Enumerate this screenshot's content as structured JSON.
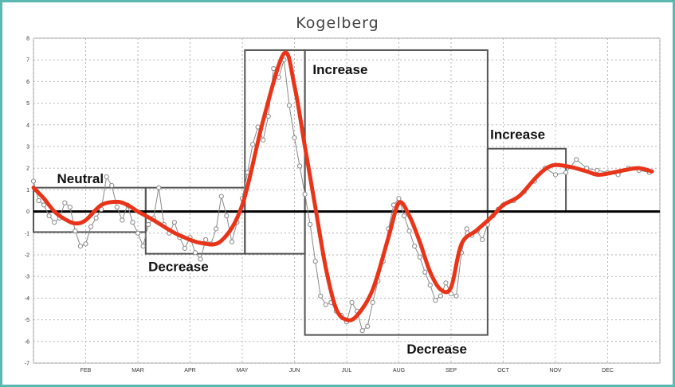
{
  "chart_data": {
    "type": "line",
    "title": "Kogelberg",
    "xlabel": "",
    "ylabel": "",
    "ylim": [
      -7,
      8
    ],
    "yticks": [
      8,
      7,
      6,
      5,
      4,
      3,
      2,
      1,
      0,
      -1,
      -2,
      -3,
      -4,
      -5,
      -6,
      -7
    ],
    "grid": true,
    "months": [
      "FEB",
      "MAR",
      "APR",
      "MAY",
      "JUN",
      "JUL",
      "AUG",
      "SEP",
      "OCT",
      "NOV",
      "DEC"
    ],
    "series": [
      {
        "kind": "smoothed",
        "color": "#e8351a",
        "x": [
          0,
          0.2,
          0.4,
          0.6,
          0.8,
          1.0,
          1.3,
          1.6,
          1.8,
          2.0,
          2.3,
          2.6,
          2.8,
          3.2,
          3.6,
          4.0,
          4.4,
          4.8,
          5.0,
          5.2,
          5.4,
          5.6,
          5.8,
          6.0,
          6.2,
          6.5,
          6.8,
          7.0,
          7.2,
          7.4,
          7.6,
          7.8,
          8.0,
          8.2,
          8.5,
          8.8,
          9.0,
          9.3,
          9.6,
          9.8,
          10.0,
          10.3,
          10.6,
          10.8,
          11.0,
          11.3,
          11.6,
          11.85
        ],
        "y": [
          1.1,
          0.6,
          0.0,
          -0.35,
          -0.55,
          -0.4,
          0.3,
          0.45,
          0.3,
          0.0,
          -0.4,
          -0.85,
          -1.1,
          -1.45,
          -1.35,
          0.3,
          4.2,
          7.3,
          5.8,
          3.0,
          0.2,
          -2.6,
          -4.5,
          -5.0,
          -4.8,
          -3.6,
          -1.2,
          0.4,
          -0.2,
          -1.4,
          -2.8,
          -3.6,
          -3.5,
          -1.5,
          -0.85,
          -0.2,
          0.3,
          0.7,
          1.5,
          1.95,
          2.15,
          2.05,
          1.85,
          1.7,
          1.75,
          1.9,
          2.0,
          1.85
        ]
      },
      {
        "kind": "observed",
        "color": "#888888",
        "x": [
          0,
          0.1,
          0.2,
          0.3,
          0.4,
          0.5,
          0.6,
          0.7,
          0.8,
          0.9,
          1.0,
          1.1,
          1.2,
          1.3,
          1.4,
          1.5,
          1.6,
          1.7,
          1.8,
          1.9,
          2.0,
          2.1,
          2.2,
          2.3,
          2.4,
          2.5,
          2.6,
          2.7,
          2.8,
          2.9,
          3.0,
          3.1,
          3.2,
          3.3,
          3.4,
          3.5,
          3.6,
          3.7,
          3.8,
          3.9,
          4.0,
          4.1,
          4.2,
          4.3,
          4.4,
          4.5,
          4.6,
          4.7,
          4.8,
          4.9,
          5.0,
          5.1,
          5.2,
          5.3,
          5.4,
          5.5,
          5.6,
          5.7,
          5.8,
          5.9,
          6.0,
          6.1,
          6.2,
          6.3,
          6.4,
          6.5,
          6.6,
          6.7,
          6.8,
          6.9,
          7.0,
          7.1,
          7.2,
          7.3,
          7.4,
          7.5,
          7.6,
          7.7,
          7.8,
          7.9,
          8.0,
          8.1,
          8.2,
          8.3,
          8.4,
          8.5,
          8.6,
          8.7,
          8.8,
          8.9,
          9.0,
          9.2,
          9.4,
          9.6,
          9.8,
          10.0,
          10.2,
          10.4,
          10.6,
          10.8,
          11.0,
          11.2,
          11.4,
          11.6,
          11.8
        ],
        "y": [
          1.4,
          0.5,
          0.3,
          -0.2,
          -0.5,
          -0.3,
          0.4,
          0.2,
          -0.9,
          -1.6,
          -1.5,
          -0.7,
          -0.3,
          0.1,
          1.6,
          1.2,
          0.2,
          -0.4,
          0.3,
          -0.5,
          -1.0,
          -1.6,
          -0.6,
          -0.3,
          1.1,
          -0.6,
          -1.0,
          -0.5,
          -1.2,
          -1.7,
          -1.2,
          -1.9,
          -2.2,
          -1.3,
          -1.5,
          -0.8,
          0.7,
          -0.2,
          -1.4,
          -0.5,
          0.6,
          1.8,
          3.1,
          3.9,
          3.3,
          4.4,
          6.6,
          6.2,
          7.0,
          4.9,
          3.4,
          2.1,
          0.8,
          -0.6,
          -2.3,
          -3.9,
          -4.3,
          -4.2,
          -4.6,
          -4.8,
          -5.1,
          -4.2,
          -4.6,
          -5.5,
          -5.3,
          -4.2,
          -3.2,
          -2.3,
          -0.8,
          0.3,
          0.6,
          -0.2,
          -0.9,
          -1.6,
          -2.1,
          -2.8,
          -3.4,
          -4.1,
          -3.9,
          -3.3,
          -3.8,
          -3.9,
          -1.9,
          -0.8,
          -1.1,
          -0.9,
          -1.3,
          -0.6,
          -0.2,
          0.1,
          0.3,
          0.5,
          0.9,
          1.4,
          2.0,
          1.7,
          1.8,
          2.4,
          2.0,
          1.9,
          1.8,
          1.7,
          2.0,
          1.9,
          1.8
        ]
      }
    ],
    "annotations": [
      {
        "label": "Neutral",
        "box": {
          "x0": 0,
          "x1": 2.15,
          "y0": -0.95,
          "y1": 1.1
        }
      },
      {
        "label": "Decrease",
        "box": {
          "x0": 2.15,
          "x1": 4.05,
          "y0": -1.95,
          "y1": 1.1
        }
      },
      {
        "label": "Increase",
        "box": {
          "x0": 4.05,
          "x1": 5.2,
          "y0": -1.95,
          "y1": 7.45
        }
      },
      {
        "label": "Decrease",
        "box": {
          "x0": 5.2,
          "x1": 8.7,
          "y0": -5.7,
          "y1": 7.45
        }
      },
      {
        "label": "Increase",
        "box": {
          "x0": 8.7,
          "x1": 10.2,
          "y0": 0.0,
          "y1": 2.9
        }
      }
    ]
  }
}
